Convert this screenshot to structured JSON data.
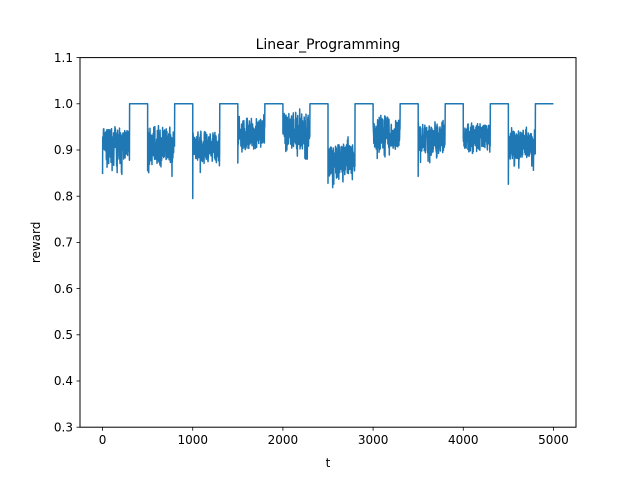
{
  "chart_data": {
    "type": "line",
    "title": "Linear_Programming",
    "xlabel": "t",
    "ylabel": "reward",
    "xlim": [
      -250,
      5250
    ],
    "ylim": [
      0.3,
      1.1
    ],
    "xticks": [
      0,
      1000,
      2000,
      3000,
      4000,
      5000
    ],
    "yticks": [
      0.3,
      0.4,
      0.5,
      0.6,
      0.7,
      0.8,
      0.9,
      1.0,
      1.1
    ],
    "xtick_labels": [
      "0",
      "1000",
      "2000",
      "3000",
      "4000",
      "5000"
    ],
    "ytick_labels": [
      "0.3",
      "0.4",
      "0.5",
      "0.6",
      "0.7",
      "0.8",
      "0.9",
      "1.0",
      "1.1"
    ],
    "grid": false,
    "color": "#1f77b4",
    "series": [
      {
        "name": "reward",
        "segments": [
          {
            "start": 0,
            "end": 300,
            "mode": "noisy",
            "mean": 0.91,
            "amp": 0.035
          },
          {
            "start": 300,
            "end": 500,
            "mode": "flat",
            "value": 1.0
          },
          {
            "start": 500,
            "end": 800,
            "mode": "noisy",
            "mean": 0.91,
            "amp": 0.035
          },
          {
            "start": 800,
            "end": 1000,
            "mode": "flat",
            "value": 1.0
          },
          {
            "start": 1000,
            "end": 1300,
            "mode": "noisy",
            "mean": 0.905,
            "amp": 0.03
          },
          {
            "start": 1300,
            "end": 1500,
            "mode": "flat",
            "value": 1.0
          },
          {
            "start": 1500,
            "end": 1800,
            "mode": "noisy",
            "mean": 0.935,
            "amp": 0.03
          },
          {
            "start": 1800,
            "end": 2000,
            "mode": "flat",
            "value": 1.0
          },
          {
            "start": 2000,
            "end": 2300,
            "mode": "noisy",
            "mean": 0.94,
            "amp": 0.035
          },
          {
            "start": 2300,
            "end": 2500,
            "mode": "flat",
            "value": 1.0
          },
          {
            "start": 2500,
            "end": 2800,
            "mode": "noisy",
            "mean": 0.88,
            "amp": 0.035
          },
          {
            "start": 2800,
            "end": 3000,
            "mode": "flat",
            "value": 1.0
          },
          {
            "start": 3000,
            "end": 3300,
            "mode": "noisy",
            "mean": 0.935,
            "amp": 0.03
          },
          {
            "start": 3300,
            "end": 3500,
            "mode": "flat",
            "value": 1.0
          },
          {
            "start": 3500,
            "end": 3800,
            "mode": "noisy",
            "mean": 0.925,
            "amp": 0.03
          },
          {
            "start": 3800,
            "end": 4000,
            "mode": "flat",
            "value": 1.0
          },
          {
            "start": 4000,
            "end": 4300,
            "mode": "noisy",
            "mean": 0.925,
            "amp": 0.03
          },
          {
            "start": 4300,
            "end": 4500,
            "mode": "flat",
            "value": 1.0
          },
          {
            "start": 4500,
            "end": 4800,
            "mode": "noisy",
            "mean": 0.91,
            "amp": 0.03
          },
          {
            "start": 4800,
            "end": 5000,
            "mode": "flat",
            "value": 1.0
          }
        ],
        "spikes": [
          {
            "t": 0,
            "value": 0.848
          },
          {
            "t": 500,
            "value": 0.855
          },
          {
            "t": 770,
            "value": 0.843
          },
          {
            "t": 1000,
            "value": 0.795
          },
          {
            "t": 1500,
            "value": 0.872
          },
          {
            "t": 2500,
            "value": 0.828
          },
          {
            "t": 2770,
            "value": 0.836
          },
          {
            "t": 3500,
            "value": 0.843
          },
          {
            "t": 4500,
            "value": 0.826
          },
          {
            "t": 4760,
            "value": 0.865
          }
        ]
      }
    ]
  }
}
